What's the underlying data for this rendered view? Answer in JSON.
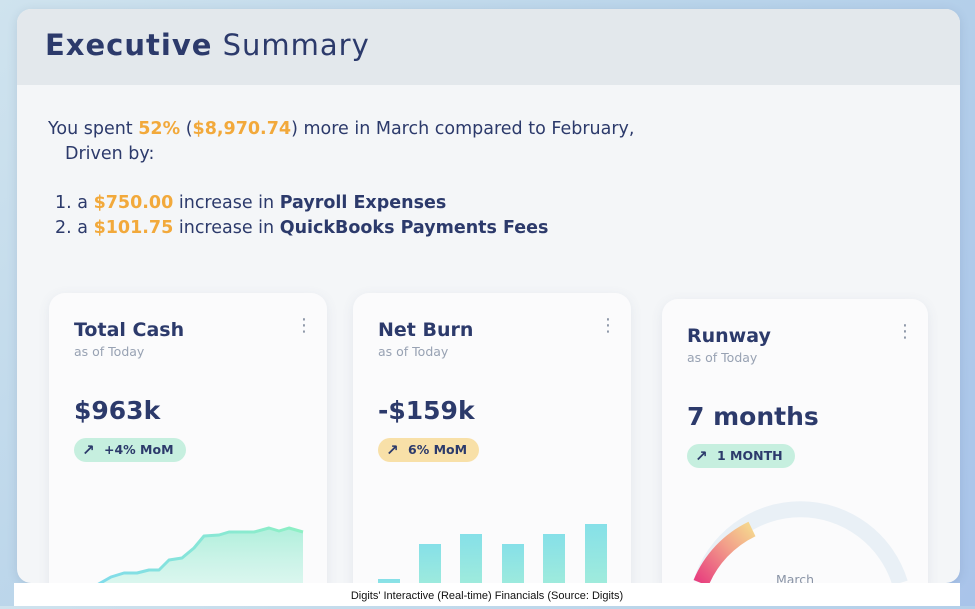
{
  "header": {
    "title_bold": "Executive",
    "title_light": "Summary"
  },
  "summary": {
    "pre": "You spent ",
    "percent": "52%",
    "amount": "$8,970.74",
    "post": ") more in March compared to February,",
    "driven_by": "Driven by:"
  },
  "drivers": [
    {
      "num": "1.",
      "a": "a ",
      "amount": "$750.00",
      "mid": " increase in ",
      "category": "Payroll Expenses"
    },
    {
      "num": "2.",
      "a": "a ",
      "amount": "$101.75",
      "mid": " increase in ",
      "category": "QuickBooks Payments Fees"
    }
  ],
  "cards": {
    "total_cash": {
      "title": "Total Cash",
      "subtitle": "as of Today",
      "value": "$963k",
      "badge": "+4% MoM"
    },
    "net_burn": {
      "title": "Net Burn",
      "subtitle": "as of Today",
      "value": "-$159k",
      "badge": "6% MoM"
    },
    "runway": {
      "title": "Runway",
      "subtitle": "as of Today",
      "value": "7 months",
      "badge": "1 MONTH",
      "gauge_label": "March"
    }
  },
  "colors": {
    "navy": "#2c3a6b",
    "highlight": "#f2a93b",
    "green_pill": "#c6efdf",
    "yellow_pill": "#f8e0a8"
  },
  "icons": {
    "kebab": "vertical-dots-icon",
    "trend": "arrow-up-right-icon"
  },
  "caption": "Digits' Interactive (Real-time) Financials (Source: Digits)"
}
